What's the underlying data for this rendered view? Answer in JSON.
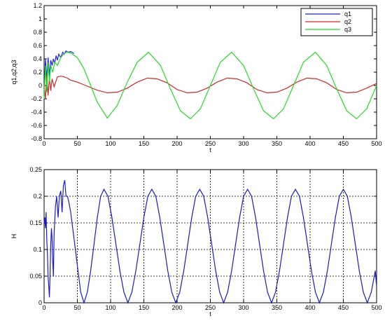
{
  "chart_data": [
    {
      "type": "line",
      "xlabel": "t",
      "ylabel": "q1,q2,q3",
      "xlim": [
        0,
        500
      ],
      "ylim": [
        -0.8,
        1.2
      ],
      "xticks": [
        "0",
        "50",
        "100",
        "150",
        "200",
        "250",
        "300",
        "350",
        "400",
        "450",
        "500"
      ],
      "yticks": [
        "-0.8",
        "-0.6",
        "-0.4",
        "-0.2",
        "0",
        "0.2",
        "0.4",
        "0.6",
        "0.8",
        "1",
        "1.2"
      ],
      "grid": false,
      "legend_position": "top-right",
      "series": [
        {
          "name": "q1",
          "color": "#1f1fff",
          "x": [
            0,
            2,
            4,
            6,
            8,
            10,
            12,
            14,
            16,
            18,
            20,
            22,
            25,
            28,
            30,
            33,
            36,
            40,
            45
          ],
          "y": [
            -0.1,
            0.4,
            0.1,
            0.42,
            0.15,
            0.38,
            0.3,
            0.4,
            0.33,
            0.45,
            0.38,
            0.47,
            0.42,
            0.5,
            0.47,
            0.52,
            0.5,
            0.51,
            0.48
          ]
        },
        {
          "name": "q2",
          "color": "#cc2b2b",
          "x": [
            0,
            2,
            4,
            6,
            8,
            10,
            12,
            15,
            20,
            25,
            30,
            35,
            40,
            50,
            60,
            80,
            95,
            110,
            125,
            140,
            155,
            170,
            185,
            200,
            215,
            230,
            245,
            260,
            275,
            290,
            305,
            320,
            335,
            350,
            365,
            380,
            395,
            410,
            425,
            440,
            455,
            470,
            485,
            500
          ],
          "y": [
            0.0,
            -0.2,
            0.15,
            -0.15,
            0.12,
            -0.08,
            0.1,
            -0.02,
            0.13,
            0.14,
            0.13,
            0.11,
            0.08,
            0.05,
            0.01,
            -0.07,
            -0.11,
            -0.1,
            -0.04,
            0.05,
            0.11,
            0.1,
            0.04,
            -0.06,
            -0.11,
            -0.1,
            -0.04,
            0.05,
            0.11,
            0.1,
            0.04,
            -0.06,
            -0.11,
            -0.1,
            -0.04,
            0.05,
            0.11,
            0.1,
            0.04,
            -0.06,
            -0.11,
            -0.1,
            -0.04,
            0.03
          ]
        },
        {
          "name": "q3",
          "color": "#22dd22",
          "x": [
            0,
            2,
            4,
            6,
            8,
            10,
            13,
            16,
            20,
            25,
            30,
            35,
            40,
            50,
            60,
            70,
            80,
            95,
            110,
            125,
            140,
            157,
            175,
            190,
            205,
            220,
            235,
            250,
            265,
            282,
            300,
            315,
            330,
            345,
            360,
            375,
            390,
            408,
            425,
            440,
            455,
            470,
            485,
            500
          ],
          "y": [
            -0.2,
            0.3,
            -0.1,
            0.35,
            0.05,
            0.3,
            0.2,
            0.35,
            0.3,
            0.42,
            0.48,
            0.5,
            0.49,
            0.42,
            0.25,
            0.0,
            -0.25,
            -0.49,
            -0.3,
            0.05,
            0.35,
            0.5,
            0.3,
            -0.05,
            -0.38,
            -0.5,
            -0.35,
            0.0,
            0.35,
            0.5,
            0.3,
            -0.05,
            -0.38,
            -0.5,
            -0.35,
            0.0,
            0.35,
            0.5,
            0.3,
            -0.05,
            -0.38,
            -0.5,
            -0.35,
            0.0
          ]
        }
      ]
    },
    {
      "type": "line",
      "xlabel": "t",
      "ylabel": "H",
      "xlim": [
        0,
        500
      ],
      "ylim": [
        0,
        0.25
      ],
      "xticks": [
        "0",
        "50",
        "100",
        "150",
        "200",
        "250",
        "300",
        "350",
        "400",
        "450",
        "500"
      ],
      "yticks": [
        "0",
        "0.05",
        "0.1",
        "0.15",
        "0.2",
        "0.25"
      ],
      "grid": true,
      "series": [
        {
          "color": "#1a1acc",
          "x": [
            0,
            1,
            2,
            3,
            4,
            5,
            6,
            7,
            8,
            9,
            10,
            11,
            12,
            13,
            14,
            15,
            17,
            19,
            21,
            23,
            25,
            27,
            29,
            31,
            33,
            35,
            37,
            40,
            45,
            50,
            55,
            60,
            65,
            70,
            75,
            80,
            85,
            90,
            96,
            102,
            108,
            114,
            120,
            126,
            132,
            138,
            144,
            150,
            156,
            162,
            168,
            174,
            180,
            186,
            192,
            198,
            204,
            210,
            216,
            222,
            228,
            234,
            240,
            246,
            252,
            258,
            264,
            270,
            276,
            282,
            288,
            294,
            300,
            306,
            312,
            318,
            324,
            330,
            336,
            342,
            348,
            354,
            360,
            366,
            372,
            378,
            384,
            390,
            396,
            402,
            408,
            414,
            420,
            426,
            432,
            438,
            444,
            450,
            456,
            462,
            468,
            474,
            480,
            486,
            492,
            498,
            500
          ],
          "y": [
            0.15,
            0.16,
            0.14,
            0.17,
            0.12,
            0.09,
            0.05,
            0.03,
            0.01,
            0.05,
            0.11,
            0.14,
            0.12,
            0.08,
            0.05,
            0.13,
            0.18,
            0.2,
            0.16,
            0.2,
            0.21,
            0.17,
            0.22,
            0.23,
            0.2,
            0.2,
            0.19,
            0.17,
            0.12,
            0.07,
            0.02,
            0.0,
            0.02,
            0.06,
            0.11,
            0.16,
            0.2,
            0.213,
            0.2,
            0.16,
            0.11,
            0.06,
            0.02,
            0.0,
            0.02,
            0.06,
            0.11,
            0.16,
            0.2,
            0.213,
            0.2,
            0.16,
            0.11,
            0.06,
            0.02,
            0.0,
            0.02,
            0.06,
            0.11,
            0.16,
            0.2,
            0.213,
            0.2,
            0.16,
            0.11,
            0.06,
            0.02,
            0.0,
            0.02,
            0.06,
            0.11,
            0.16,
            0.2,
            0.213,
            0.2,
            0.16,
            0.11,
            0.06,
            0.02,
            0.0,
            0.02,
            0.06,
            0.11,
            0.16,
            0.2,
            0.213,
            0.2,
            0.16,
            0.11,
            0.06,
            0.02,
            0.0,
            0.02,
            0.06,
            0.11,
            0.16,
            0.2,
            0.213,
            0.2,
            0.16,
            0.11,
            0.06,
            0.02,
            0.0,
            0.02,
            0.06,
            0.03
          ]
        }
      ]
    }
  ]
}
